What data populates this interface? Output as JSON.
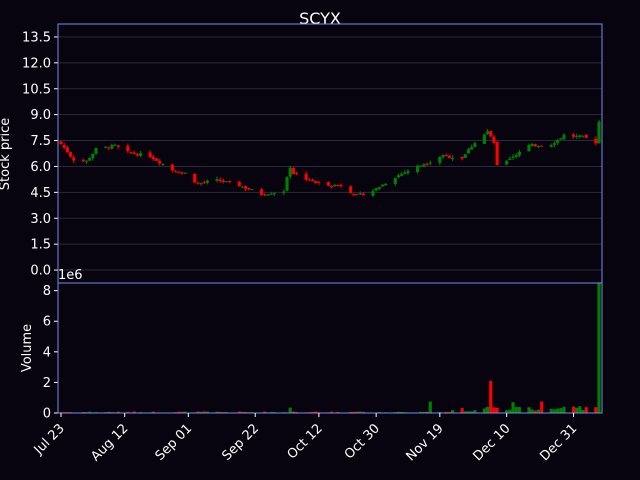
{
  "chart_data": [
    {
      "type": "candlestick",
      "title": "SCYX",
      "ylabel": "Stock price",
      "ylim": [
        -0.75,
        14.25
      ],
      "yticks": [
        "0.0",
        "1.5",
        "3.0",
        "4.5",
        "6.0",
        "7.5",
        "9.0",
        "10.5",
        "12.0",
        "13.5"
      ],
      "grid": true,
      "colors": {
        "up": "#008000",
        "down": "#ff0000",
        "frame": "#6f8fe6",
        "grid": "#2a2a3c",
        "background": "#07040f"
      },
      "close_anchors": [
        {
          "date": "2018-07-23",
          "close": 7.3
        },
        {
          "date": "2018-07-27",
          "close": 6.4
        },
        {
          "date": "2018-07-31",
          "close": 6.3
        },
        {
          "date": "2018-08-03",
          "close": 7.0
        },
        {
          "date": "2018-08-09",
          "close": 7.2
        },
        {
          "date": "2018-08-13",
          "close": 6.8
        },
        {
          "date": "2018-08-20",
          "close": 6.6
        },
        {
          "date": "2018-08-27",
          "close": 5.8
        },
        {
          "date": "2018-08-31",
          "close": 5.6
        },
        {
          "date": "2018-09-04",
          "close": 5.0
        },
        {
          "date": "2018-09-10",
          "close": 5.2
        },
        {
          "date": "2018-09-17",
          "close": 4.9
        },
        {
          "date": "2018-09-24",
          "close": 4.4
        },
        {
          "date": "2018-09-28",
          "close": 4.5
        },
        {
          "date": "2018-10-01",
          "close": 4.6
        },
        {
          "date": "2018-10-03",
          "close": 6.0
        },
        {
          "date": "2018-10-04",
          "close": 5.6
        },
        {
          "date": "2018-10-12",
          "close": 5.0
        },
        {
          "date": "2018-10-19",
          "close": 4.9
        },
        {
          "date": "2018-10-24",
          "close": 4.3
        },
        {
          "date": "2018-10-29",
          "close": 4.6
        },
        {
          "date": "2018-11-05",
          "close": 5.4
        },
        {
          "date": "2018-11-12",
          "close": 6.0
        },
        {
          "date": "2018-11-16",
          "close": 6.3
        },
        {
          "date": "2018-11-19",
          "close": 6.6
        },
        {
          "date": "2018-11-26",
          "close": 6.5
        },
        {
          "date": "2018-11-30",
          "close": 7.4
        },
        {
          "date": "2018-12-04",
          "close": 8.0
        },
        {
          "date": "2018-12-06",
          "close": 7.4
        },
        {
          "date": "2018-12-07",
          "close": 6.0
        },
        {
          "date": "2018-12-12",
          "close": 6.6
        },
        {
          "date": "2018-12-17",
          "close": 7.2
        },
        {
          "date": "2018-12-24",
          "close": 7.3
        },
        {
          "date": "2018-12-28",
          "close": 7.8
        },
        {
          "date": "2019-01-03",
          "close": 7.7
        },
        {
          "date": "2019-01-07",
          "close": 7.4
        },
        {
          "date": "2019-01-08",
          "close": 8.6
        }
      ]
    },
    {
      "type": "bar",
      "ylabel": "Volume",
      "scale_label": "1e6",
      "ylim": [
        0,
        8.5
      ],
      "yticks": [
        "0",
        "2",
        "4",
        "6",
        "8"
      ],
      "unit": "millions of shares",
      "xlabels": [
        "Jul 23",
        "Aug 12",
        "Sep 01",
        "Sep 22",
        "Oct 12",
        "Oct 30",
        "Nov 19",
        "Dec 10",
        "Dec 31"
      ],
      "x_range": [
        "2018-07-23",
        "2019-01-08"
      ],
      "notable_bars": [
        {
          "date": "2018-10-03",
          "value": 0.35
        },
        {
          "date": "2018-11-16",
          "value": 0.75
        },
        {
          "date": "2018-12-05",
          "value": 2.1
        },
        {
          "date": "2018-12-12",
          "value": 0.7
        },
        {
          "date": "2018-12-21",
          "value": 0.75
        },
        {
          "date": "2019-01-08",
          "value": 8.5
        }
      ]
    }
  ]
}
